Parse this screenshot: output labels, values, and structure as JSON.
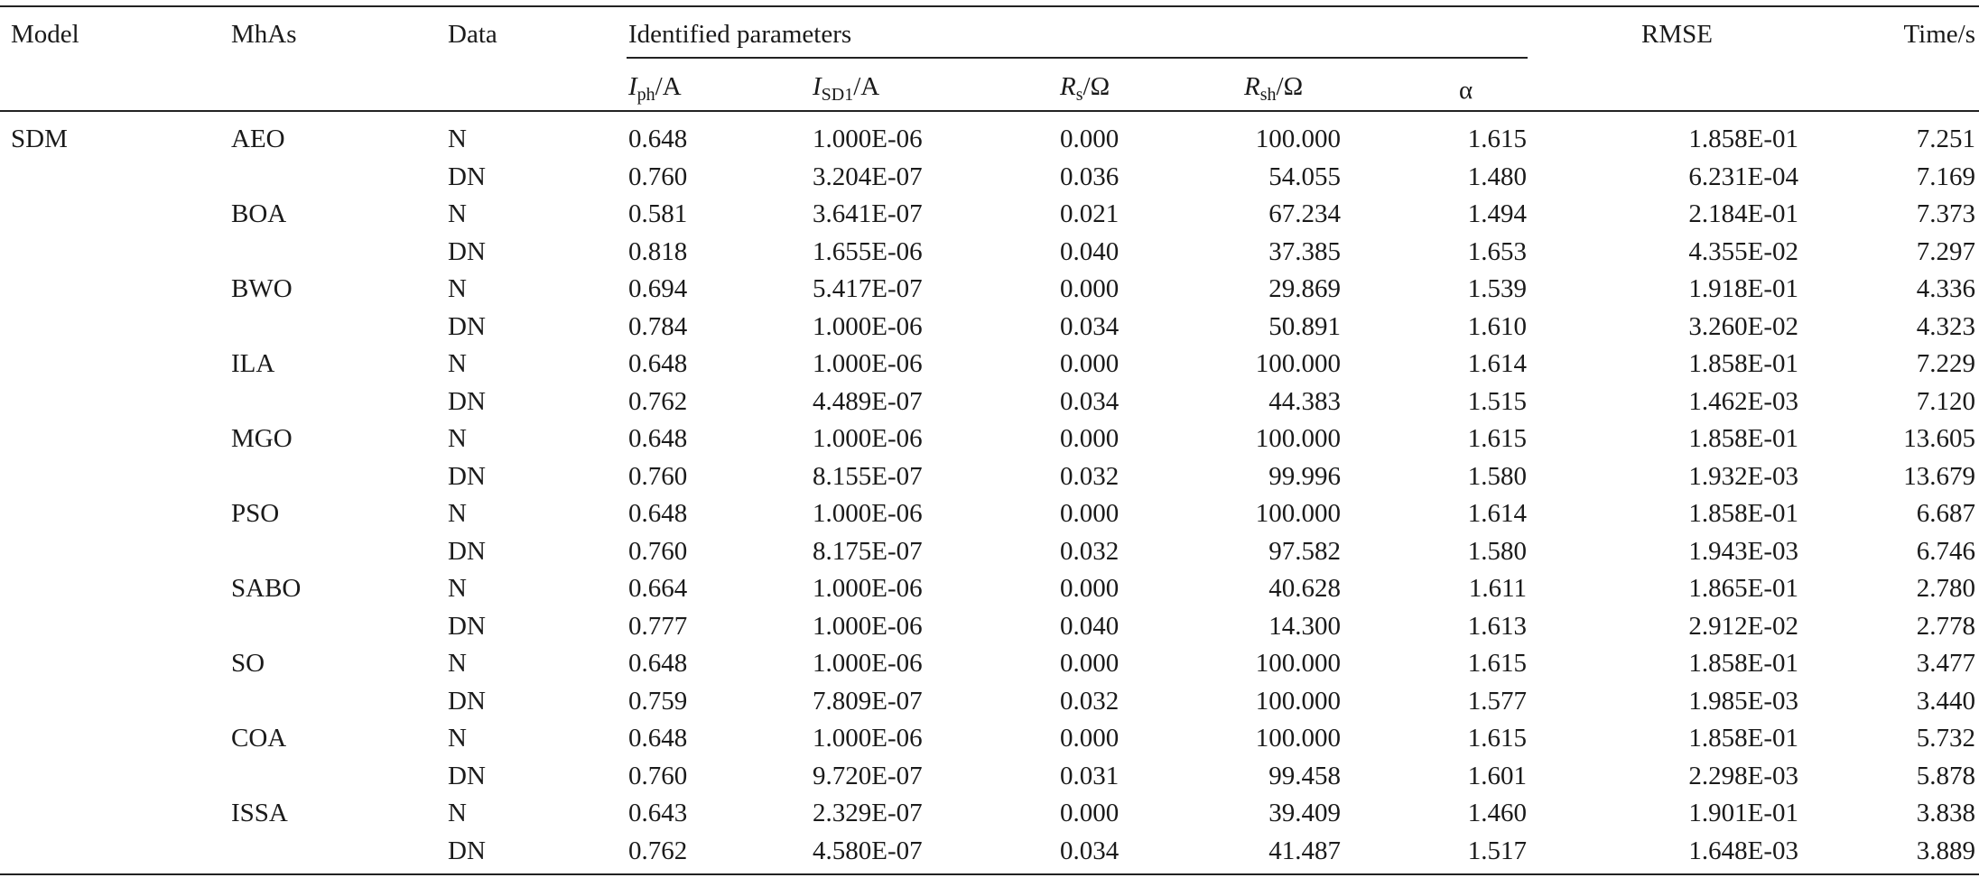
{
  "headers": {
    "model": "Model",
    "mhas": "MhAs",
    "data": "Data",
    "identified": "Identified parameters",
    "iph": "I",
    "iph_sub": "ph",
    "iph_unit": "/A",
    "isd1": "I",
    "isd1_sub": "SD1",
    "isd1_unit": "/A",
    "rs": "R",
    "rs_sub": "s",
    "rs_unit": "/Ω",
    "rsh": "R",
    "rsh_sub": "sh",
    "rsh_unit": "/Ω",
    "alpha": "α",
    "rmse": "RMSE",
    "time": "Time/s"
  },
  "model_name": "SDM",
  "rows": [
    {
      "mha": "AEO",
      "data": "N",
      "iph": "0.648",
      "isd1": "1.000E-06",
      "rs": "0.000",
      "rsh": "100.000",
      "alpha": "1.615",
      "rmse": "1.858E-01",
      "time": "7.251"
    },
    {
      "mha": "",
      "data": "DN",
      "iph": "0.760",
      "isd1": "3.204E-07",
      "rs": "0.036",
      "rsh": "54.055",
      "alpha": "1.480",
      "rmse": "6.231E-04",
      "time": "7.169"
    },
    {
      "mha": "BOA",
      "data": "N",
      "iph": "0.581",
      "isd1": "3.641E-07",
      "rs": "0.021",
      "rsh": "67.234",
      "alpha": "1.494",
      "rmse": "2.184E-01",
      "time": "7.373"
    },
    {
      "mha": "",
      "data": "DN",
      "iph": "0.818",
      "isd1": "1.655E-06",
      "rs": "0.040",
      "rsh": "37.385",
      "alpha": "1.653",
      "rmse": "4.355E-02",
      "time": "7.297"
    },
    {
      "mha": "BWO",
      "data": "N",
      "iph": "0.694",
      "isd1": "5.417E-07",
      "rs": "0.000",
      "rsh": "29.869",
      "alpha": "1.539",
      "rmse": "1.918E-01",
      "time": "4.336"
    },
    {
      "mha": "",
      "data": "DN",
      "iph": "0.784",
      "isd1": "1.000E-06",
      "rs": "0.034",
      "rsh": "50.891",
      "alpha": "1.610",
      "rmse": "3.260E-02",
      "time": "4.323"
    },
    {
      "mha": "ILA",
      "data": "N",
      "iph": "0.648",
      "isd1": "1.000E-06",
      "rs": "0.000",
      "rsh": "100.000",
      "alpha": "1.614",
      "rmse": "1.858E-01",
      "time": "7.229"
    },
    {
      "mha": "",
      "data": "DN",
      "iph": "0.762",
      "isd1": "4.489E-07",
      "rs": "0.034",
      "rsh": "44.383",
      "alpha": "1.515",
      "rmse": "1.462E-03",
      "time": "7.120"
    },
    {
      "mha": "MGO",
      "data": "N",
      "iph": "0.648",
      "isd1": "1.000E-06",
      "rs": "0.000",
      "rsh": "100.000",
      "alpha": "1.615",
      "rmse": "1.858E-01",
      "time": "13.605"
    },
    {
      "mha": "",
      "data": "DN",
      "iph": "0.760",
      "isd1": "8.155E-07",
      "rs": "0.032",
      "rsh": "99.996",
      "alpha": "1.580",
      "rmse": "1.932E-03",
      "time": "13.679"
    },
    {
      "mha": "PSO",
      "data": "N",
      "iph": "0.648",
      "isd1": "1.000E-06",
      "rs": "0.000",
      "rsh": "100.000",
      "alpha": "1.614",
      "rmse": "1.858E-01",
      "time": "6.687"
    },
    {
      "mha": "",
      "data": "DN",
      "iph": "0.760",
      "isd1": "8.175E-07",
      "rs": "0.032",
      "rsh": "97.582",
      "alpha": "1.580",
      "rmse": "1.943E-03",
      "time": "6.746"
    },
    {
      "mha": "SABO",
      "data": "N",
      "iph": "0.664",
      "isd1": "1.000E-06",
      "rs": "0.000",
      "rsh": "40.628",
      "alpha": "1.611",
      "rmse": "1.865E-01",
      "time": "2.780"
    },
    {
      "mha": "",
      "data": "DN",
      "iph": "0.777",
      "isd1": "1.000E-06",
      "rs": "0.040",
      "rsh": "14.300",
      "alpha": "1.613",
      "rmse": "2.912E-02",
      "time": "2.778"
    },
    {
      "mha": "SO",
      "data": "N",
      "iph": "0.648",
      "isd1": "1.000E-06",
      "rs": "0.000",
      "rsh": "100.000",
      "alpha": "1.615",
      "rmse": "1.858E-01",
      "time": "3.477"
    },
    {
      "mha": "",
      "data": "DN",
      "iph": "0.759",
      "isd1": "7.809E-07",
      "rs": "0.032",
      "rsh": "100.000",
      "alpha": "1.577",
      "rmse": "1.985E-03",
      "time": "3.440"
    },
    {
      "mha": "COA",
      "data": "N",
      "iph": "0.648",
      "isd1": "1.000E-06",
      "rs": "0.000",
      "rsh": "100.000",
      "alpha": "1.615",
      "rmse": "1.858E-01",
      "time": "5.732"
    },
    {
      "mha": "",
      "data": "DN",
      "iph": "0.760",
      "isd1": "9.720E-07",
      "rs": "0.031",
      "rsh": "99.458",
      "alpha": "1.601",
      "rmse": "2.298E-03",
      "time": "5.878"
    },
    {
      "mha": "ISSA",
      "data": "N",
      "iph": "0.643",
      "isd1": "2.329E-07",
      "rs": "0.000",
      "rsh": "39.409",
      "alpha": "1.460",
      "rmse": "1.901E-01",
      "time": "3.838"
    },
    {
      "mha": "",
      "data": "DN",
      "iph": "0.762",
      "isd1": "4.580E-07",
      "rs": "0.034",
      "rsh": "41.487",
      "alpha": "1.517",
      "rmse": "1.648E-03",
      "time": "3.889"
    }
  ]
}
